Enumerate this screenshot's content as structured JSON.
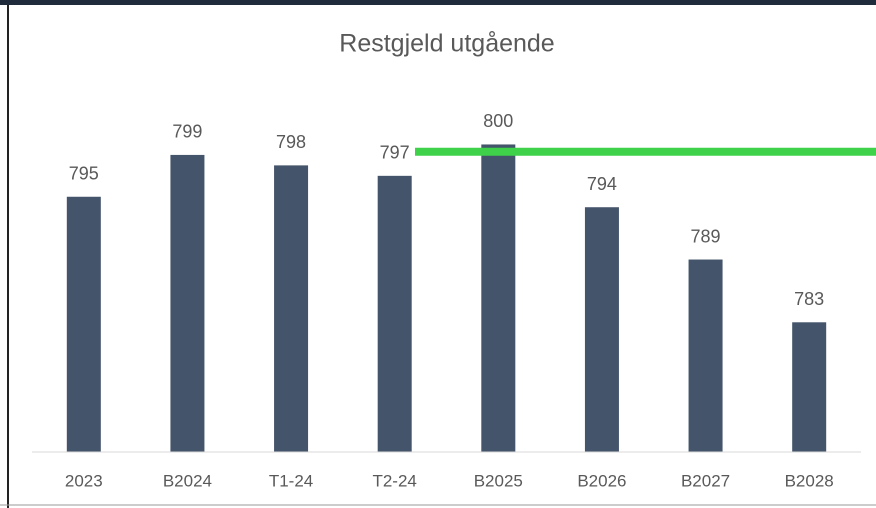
{
  "chart_data": {
    "type": "bar",
    "title": "Restgjeld utgående",
    "categories": [
      "2023",
      "B2024",
      "T1-24",
      "T2-24",
      "B2025",
      "B2026",
      "B2027",
      "B2028"
    ],
    "values": [
      795,
      799,
      798,
      797,
      800,
      794,
      789,
      783
    ],
    "color": "#44546a",
    "ylim": [
      770.6,
      801
    ],
    "reference_line": {
      "value": 799.3,
      "color": "#3fd14a"
    }
  }
}
